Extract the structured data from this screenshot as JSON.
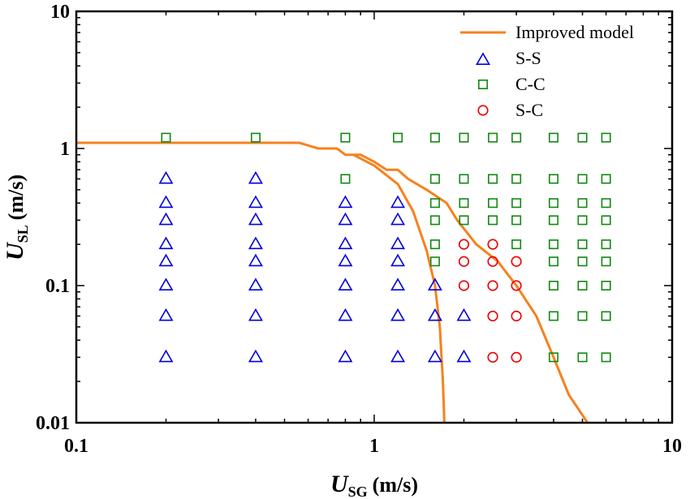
{
  "chart_data": {
    "type": "scatter",
    "title": "",
    "x_scale": "log",
    "y_scale": "log",
    "xlim": [
      0.1,
      10
    ],
    "ylim": [
      0.01,
      10
    ],
    "xlabel": {
      "symbol": "U",
      "subscript": "SG",
      "unit": "(m/s)"
    },
    "ylabel": {
      "symbol": "U",
      "subscript": "SL",
      "unit": "(m/s)"
    },
    "x_ticks": [
      {
        "value": 0.1,
        "label": "0.1"
      },
      {
        "value": 1,
        "label": "1"
      },
      {
        "value": 10,
        "label": "10"
      }
    ],
    "y_ticks": [
      {
        "value": 0.01,
        "label": "0.01"
      },
      {
        "value": 0.1,
        "label": "0.1"
      },
      {
        "value": 1,
        "label": "1"
      },
      {
        "value": 10,
        "label": "10"
      }
    ],
    "legend_position": "top-right",
    "colors": {
      "model": "#f5821f",
      "ss": "#0000dd",
      "cc": "#118811",
      "sc": "#ee0000"
    },
    "series": [
      {
        "name": "Improved model",
        "kind": "line",
        "segments": [
          [
            [
              0.1,
              1.1
            ],
            [
              0.56,
              1.1
            ],
            [
              0.65,
              1.0
            ],
            [
              0.75,
              1.0
            ],
            [
              0.8,
              0.9
            ],
            [
              0.9,
              0.9
            ],
            [
              1.0,
              0.8
            ],
            [
              1.1,
              0.7
            ],
            [
              1.2,
              0.7
            ],
            [
              1.3,
              0.6
            ],
            [
              1.5,
              0.5
            ],
            [
              1.75,
              0.4
            ],
            [
              1.9,
              0.3
            ],
            [
              2.2,
              0.2
            ],
            [
              2.6,
              0.15
            ],
            [
              3.0,
              0.1
            ],
            [
              3.5,
              0.06
            ],
            [
              4.0,
              0.03
            ],
            [
              4.5,
              0.016
            ],
            [
              5.2,
              0.01
            ]
          ],
          [
            [
              0.85,
              0.9
            ],
            [
              1.0,
              0.75
            ],
            [
              1.2,
              0.55
            ],
            [
              1.35,
              0.35
            ],
            [
              1.5,
              0.18
            ],
            [
              1.6,
              0.1
            ],
            [
              1.66,
              0.05
            ],
            [
              1.7,
              0.02
            ],
            [
              1.72,
              0.01
            ]
          ]
        ]
      },
      {
        "name": "S-S",
        "kind": "triangle",
        "points": [
          [
            0.2,
            0.6
          ],
          [
            0.2,
            0.4
          ],
          [
            0.2,
            0.3
          ],
          [
            0.2,
            0.2
          ],
          [
            0.2,
            0.15
          ],
          [
            0.2,
            0.1
          ],
          [
            0.2,
            0.06
          ],
          [
            0.2,
            0.03
          ],
          [
            0.4,
            0.6
          ],
          [
            0.4,
            0.4
          ],
          [
            0.4,
            0.3
          ],
          [
            0.4,
            0.2
          ],
          [
            0.4,
            0.15
          ],
          [
            0.4,
            0.1
          ],
          [
            0.4,
            0.06
          ],
          [
            0.4,
            0.03
          ],
          [
            0.8,
            0.4
          ],
          [
            0.8,
            0.3
          ],
          [
            0.8,
            0.2
          ],
          [
            0.8,
            0.15
          ],
          [
            0.8,
            0.1
          ],
          [
            0.8,
            0.06
          ],
          [
            0.8,
            0.03
          ],
          [
            1.2,
            0.4
          ],
          [
            1.2,
            0.3
          ],
          [
            1.2,
            0.2
          ],
          [
            1.2,
            0.15
          ],
          [
            1.2,
            0.1
          ],
          [
            1.2,
            0.06
          ],
          [
            1.2,
            0.03
          ],
          [
            1.6,
            0.1
          ],
          [
            1.6,
            0.06
          ],
          [
            1.6,
            0.03
          ],
          [
            2.0,
            0.06
          ],
          [
            2.0,
            0.03
          ]
        ]
      },
      {
        "name": "C-C",
        "kind": "square",
        "points": [
          [
            0.2,
            1.2
          ],
          [
            0.4,
            1.2
          ],
          [
            0.8,
            1.2
          ],
          [
            1.2,
            1.2
          ],
          [
            1.6,
            1.2
          ],
          [
            2.0,
            1.2
          ],
          [
            2.5,
            1.2
          ],
          [
            3.0,
            1.2
          ],
          [
            4.0,
            1.2
          ],
          [
            5.0,
            1.2
          ],
          [
            6.0,
            1.2
          ],
          [
            0.8,
            0.6
          ],
          [
            1.6,
            0.6
          ],
          [
            2.0,
            0.6
          ],
          [
            2.5,
            0.6
          ],
          [
            3.0,
            0.6
          ],
          [
            4.0,
            0.6
          ],
          [
            5.0,
            0.6
          ],
          [
            6.0,
            0.6
          ],
          [
            1.6,
            0.4
          ],
          [
            2.0,
            0.4
          ],
          [
            2.5,
            0.4
          ],
          [
            3.0,
            0.4
          ],
          [
            4.0,
            0.4
          ],
          [
            5.0,
            0.4
          ],
          [
            6.0,
            0.4
          ],
          [
            1.6,
            0.3
          ],
          [
            2.0,
            0.3
          ],
          [
            2.5,
            0.3
          ],
          [
            3.0,
            0.3
          ],
          [
            4.0,
            0.3
          ],
          [
            5.0,
            0.3
          ],
          [
            6.0,
            0.3
          ],
          [
            1.6,
            0.2
          ],
          [
            3.0,
            0.2
          ],
          [
            4.0,
            0.2
          ],
          [
            5.0,
            0.2
          ],
          [
            6.0,
            0.2
          ],
          [
            1.6,
            0.15
          ],
          [
            4.0,
            0.15
          ],
          [
            5.0,
            0.15
          ],
          [
            6.0,
            0.15
          ],
          [
            4.0,
            0.1
          ],
          [
            5.0,
            0.1
          ],
          [
            6.0,
            0.1
          ],
          [
            4.0,
            0.06
          ],
          [
            5.0,
            0.06
          ],
          [
            6.0,
            0.06
          ],
          [
            4.0,
            0.03
          ],
          [
            5.0,
            0.03
          ],
          [
            6.0,
            0.03
          ]
        ]
      },
      {
        "name": "S-C",
        "kind": "circle",
        "points": [
          [
            2.0,
            0.2
          ],
          [
            2.5,
            0.2
          ],
          [
            2.0,
            0.15
          ],
          [
            2.5,
            0.15
          ],
          [
            3.0,
            0.15
          ],
          [
            2.0,
            0.1
          ],
          [
            2.5,
            0.1
          ],
          [
            3.0,
            0.1
          ],
          [
            2.5,
            0.06
          ],
          [
            3.0,
            0.06
          ],
          [
            2.5,
            0.03
          ],
          [
            3.0,
            0.03
          ]
        ]
      }
    ]
  }
}
